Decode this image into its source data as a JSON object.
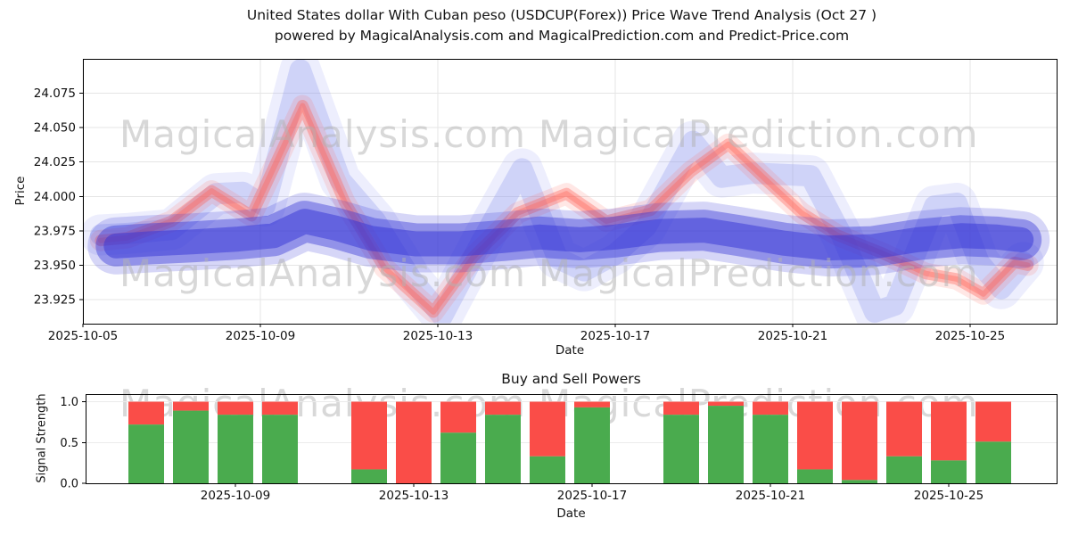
{
  "title": {
    "line1": "United States dollar With Cuban peso (USDCUP(Forex)) Price Wave Trend Analysis (Oct 27 )",
    "line2": "powered by MagicalAnalysis.com and MagicalPrediction.com and Predict-Price.com"
  },
  "watermark": {
    "analysis": "MagicalAnalysis.com",
    "prediction": "MagicalPrediction.com"
  },
  "colors": {
    "band_blue": "#3434d6",
    "wave_blue_light": "#8c96f0",
    "wave_red": "#ff5f52",
    "bar_green": "#4aab4e",
    "bar_red": "#fa4d48",
    "grid": "#e5e5e5",
    "axis": "#000000",
    "text": "#101010"
  },
  "chart_data": [
    {
      "type": "area",
      "title": "",
      "xlabel": "Date",
      "ylabel": "Price",
      "xlim_days": [
        5,
        26.95
      ],
      "ylim": [
        23.9075,
        24.1
      ],
      "grid": true,
      "x_ticks": [
        {
          "day": 5,
          "label": "2025-10-05"
        },
        {
          "day": 9,
          "label": "2025-10-09"
        },
        {
          "day": 13,
          "label": "2025-10-13"
        },
        {
          "day": 17,
          "label": "2025-10-17"
        },
        {
          "day": 21,
          "label": "2025-10-21"
        },
        {
          "day": 25,
          "label": "2025-10-25"
        }
      ],
      "y_ticks": [
        "23.925",
        "23.950",
        "23.975",
        "24.000",
        "24.025",
        "24.050",
        "24.075"
      ],
      "series": [
        {
          "name": "upper_wave",
          "color": "#8c96f0",
          "points": [
            [
              5.4,
              23.972
            ],
            [
              6,
              23.973
            ],
            [
              7,
              23.976
            ],
            [
              8,
              24.002
            ],
            [
              8.6,
              24.003
            ],
            [
              9.1,
              23.993
            ],
            [
              9.9,
              24.092
            ],
            [
              10.8,
              24.012
            ],
            [
              11.6,
              23.982
            ],
            [
              12.4,
              23.94
            ],
            [
              13.1,
              23.913
            ],
            [
              14,
              23.968
            ],
            [
              14.9,
              24.02
            ],
            [
              15.7,
              23.955
            ],
            [
              16.3,
              23.946
            ],
            [
              17,
              23.958
            ],
            [
              17.7,
              23.978
            ],
            [
              18.75,
              24.04
            ],
            [
              19.4,
              24.014
            ],
            [
              20.1,
              24.017
            ],
            [
              21.4,
              24.015
            ],
            [
              22.1,
              23.972
            ],
            [
              22.85,
              23.916
            ],
            [
              23.3,
              23.921
            ],
            [
              24.2,
              23.993
            ],
            [
              24.7,
              23.995
            ],
            [
              25.2,
              23.952
            ],
            [
              25.7,
              23.933
            ],
            [
              26.2,
              23.952
            ]
          ]
        },
        {
          "name": "signal_wave",
          "color": "#ff5f52",
          "points": [
            [
              5.4,
              23.968
            ],
            [
              6,
              23.97
            ],
            [
              7,
              23.982
            ],
            [
              7.9,
              24.004
            ],
            [
              8.8,
              23.986
            ],
            [
              9.95,
              24.066
            ],
            [
              10.9,
              23.996
            ],
            [
              11.8,
              23.948
            ],
            [
              12.9,
              23.916
            ],
            [
              13.8,
              23.956
            ],
            [
              14.8,
              23.988
            ],
            [
              15.9,
              24.002
            ],
            [
              16.8,
              23.982
            ],
            [
              17.8,
              23.99
            ],
            [
              18.7,
              24.018
            ],
            [
              19.55,
              24.038
            ],
            [
              20.4,
              24.012
            ],
            [
              21.2,
              23.988
            ],
            [
              22,
              23.972
            ],
            [
              23,
              23.959
            ],
            [
              24,
              23.944
            ],
            [
              24.7,
              23.94
            ],
            [
              25.3,
              23.929
            ],
            [
              26,
              23.952
            ],
            [
              26.3,
              23.95
            ]
          ]
        },
        {
          "name": "trend_band",
          "color": "#3434d6",
          "points": [
            [
              5.75,
              23.964
            ],
            [
              6.5,
              23.9655
            ],
            [
              7.5,
              23.967
            ],
            [
              8.5,
              23.969
            ],
            [
              9.3,
              23.9715
            ],
            [
              10,
              23.982
            ],
            [
              10.7,
              23.977
            ],
            [
              11.5,
              23.9695
            ],
            [
              12.5,
              23.9655
            ],
            [
              13.5,
              23.9655
            ],
            [
              14.5,
              23.968
            ],
            [
              15.3,
              23.9705
            ],
            [
              16.2,
              23.9685
            ],
            [
              17,
              23.9705
            ],
            [
              18,
              23.9745
            ],
            [
              19,
              23.9755
            ],
            [
              19.8,
              23.9715
            ],
            [
              20.8,
              23.966
            ],
            [
              21.8,
              23.9625
            ],
            [
              22.8,
              23.9635
            ],
            [
              23.8,
              23.9685
            ],
            [
              24.8,
              23.9715
            ],
            [
              25.6,
              23.9705
            ],
            [
              26.15,
              23.9685
            ]
          ]
        }
      ]
    },
    {
      "type": "bar",
      "title": "Buy and Sell Powers",
      "xlabel": "Date",
      "ylabel": "Signal Strength",
      "ylim": [
        0,
        1.093
      ],
      "stacked": true,
      "x_ticks": [
        {
          "day": 9,
          "label": "2025-10-09"
        },
        {
          "day": 13,
          "label": "2025-10-13"
        },
        {
          "day": 17,
          "label": "2025-10-17"
        },
        {
          "day": 21,
          "label": "2025-10-21"
        },
        {
          "day": 25,
          "label": "2025-10-25"
        }
      ],
      "y_ticks": [
        "0.0",
        "0.5",
        "1.0"
      ],
      "categories": [
        "2025-10-07",
        "2025-10-08",
        "2025-10-09",
        "2025-10-10",
        "2025-10-12",
        "2025-10-13",
        "2025-10-14",
        "2025-10-15",
        "2025-10-16",
        "2025-10-17",
        "2025-10-19",
        "2025-10-20",
        "2025-10-21",
        "2025-10-22",
        "2025-10-23",
        "2025-10-24",
        "2025-10-25",
        "2025-10-26"
      ],
      "series": [
        {
          "name": "Buy Power",
          "color": "#4aab4e",
          "values": [
            0.72,
            0.89,
            0.84,
            0.84,
            0.17,
            0.0,
            0.62,
            0.84,
            0.33,
            0.93,
            0.84,
            0.95,
            0.84,
            0.17,
            0.04,
            0.33,
            0.28,
            0.51
          ]
        },
        {
          "name": "Sell Power",
          "color": "#fa4d48",
          "values": [
            0.28,
            0.11,
            0.16,
            0.16,
            0.83,
            1.0,
            0.38,
            0.16,
            0.67,
            0.07,
            0.16,
            0.05,
            0.16,
            0.83,
            0.96,
            0.67,
            0.72,
            0.49
          ]
        }
      ]
    }
  ]
}
